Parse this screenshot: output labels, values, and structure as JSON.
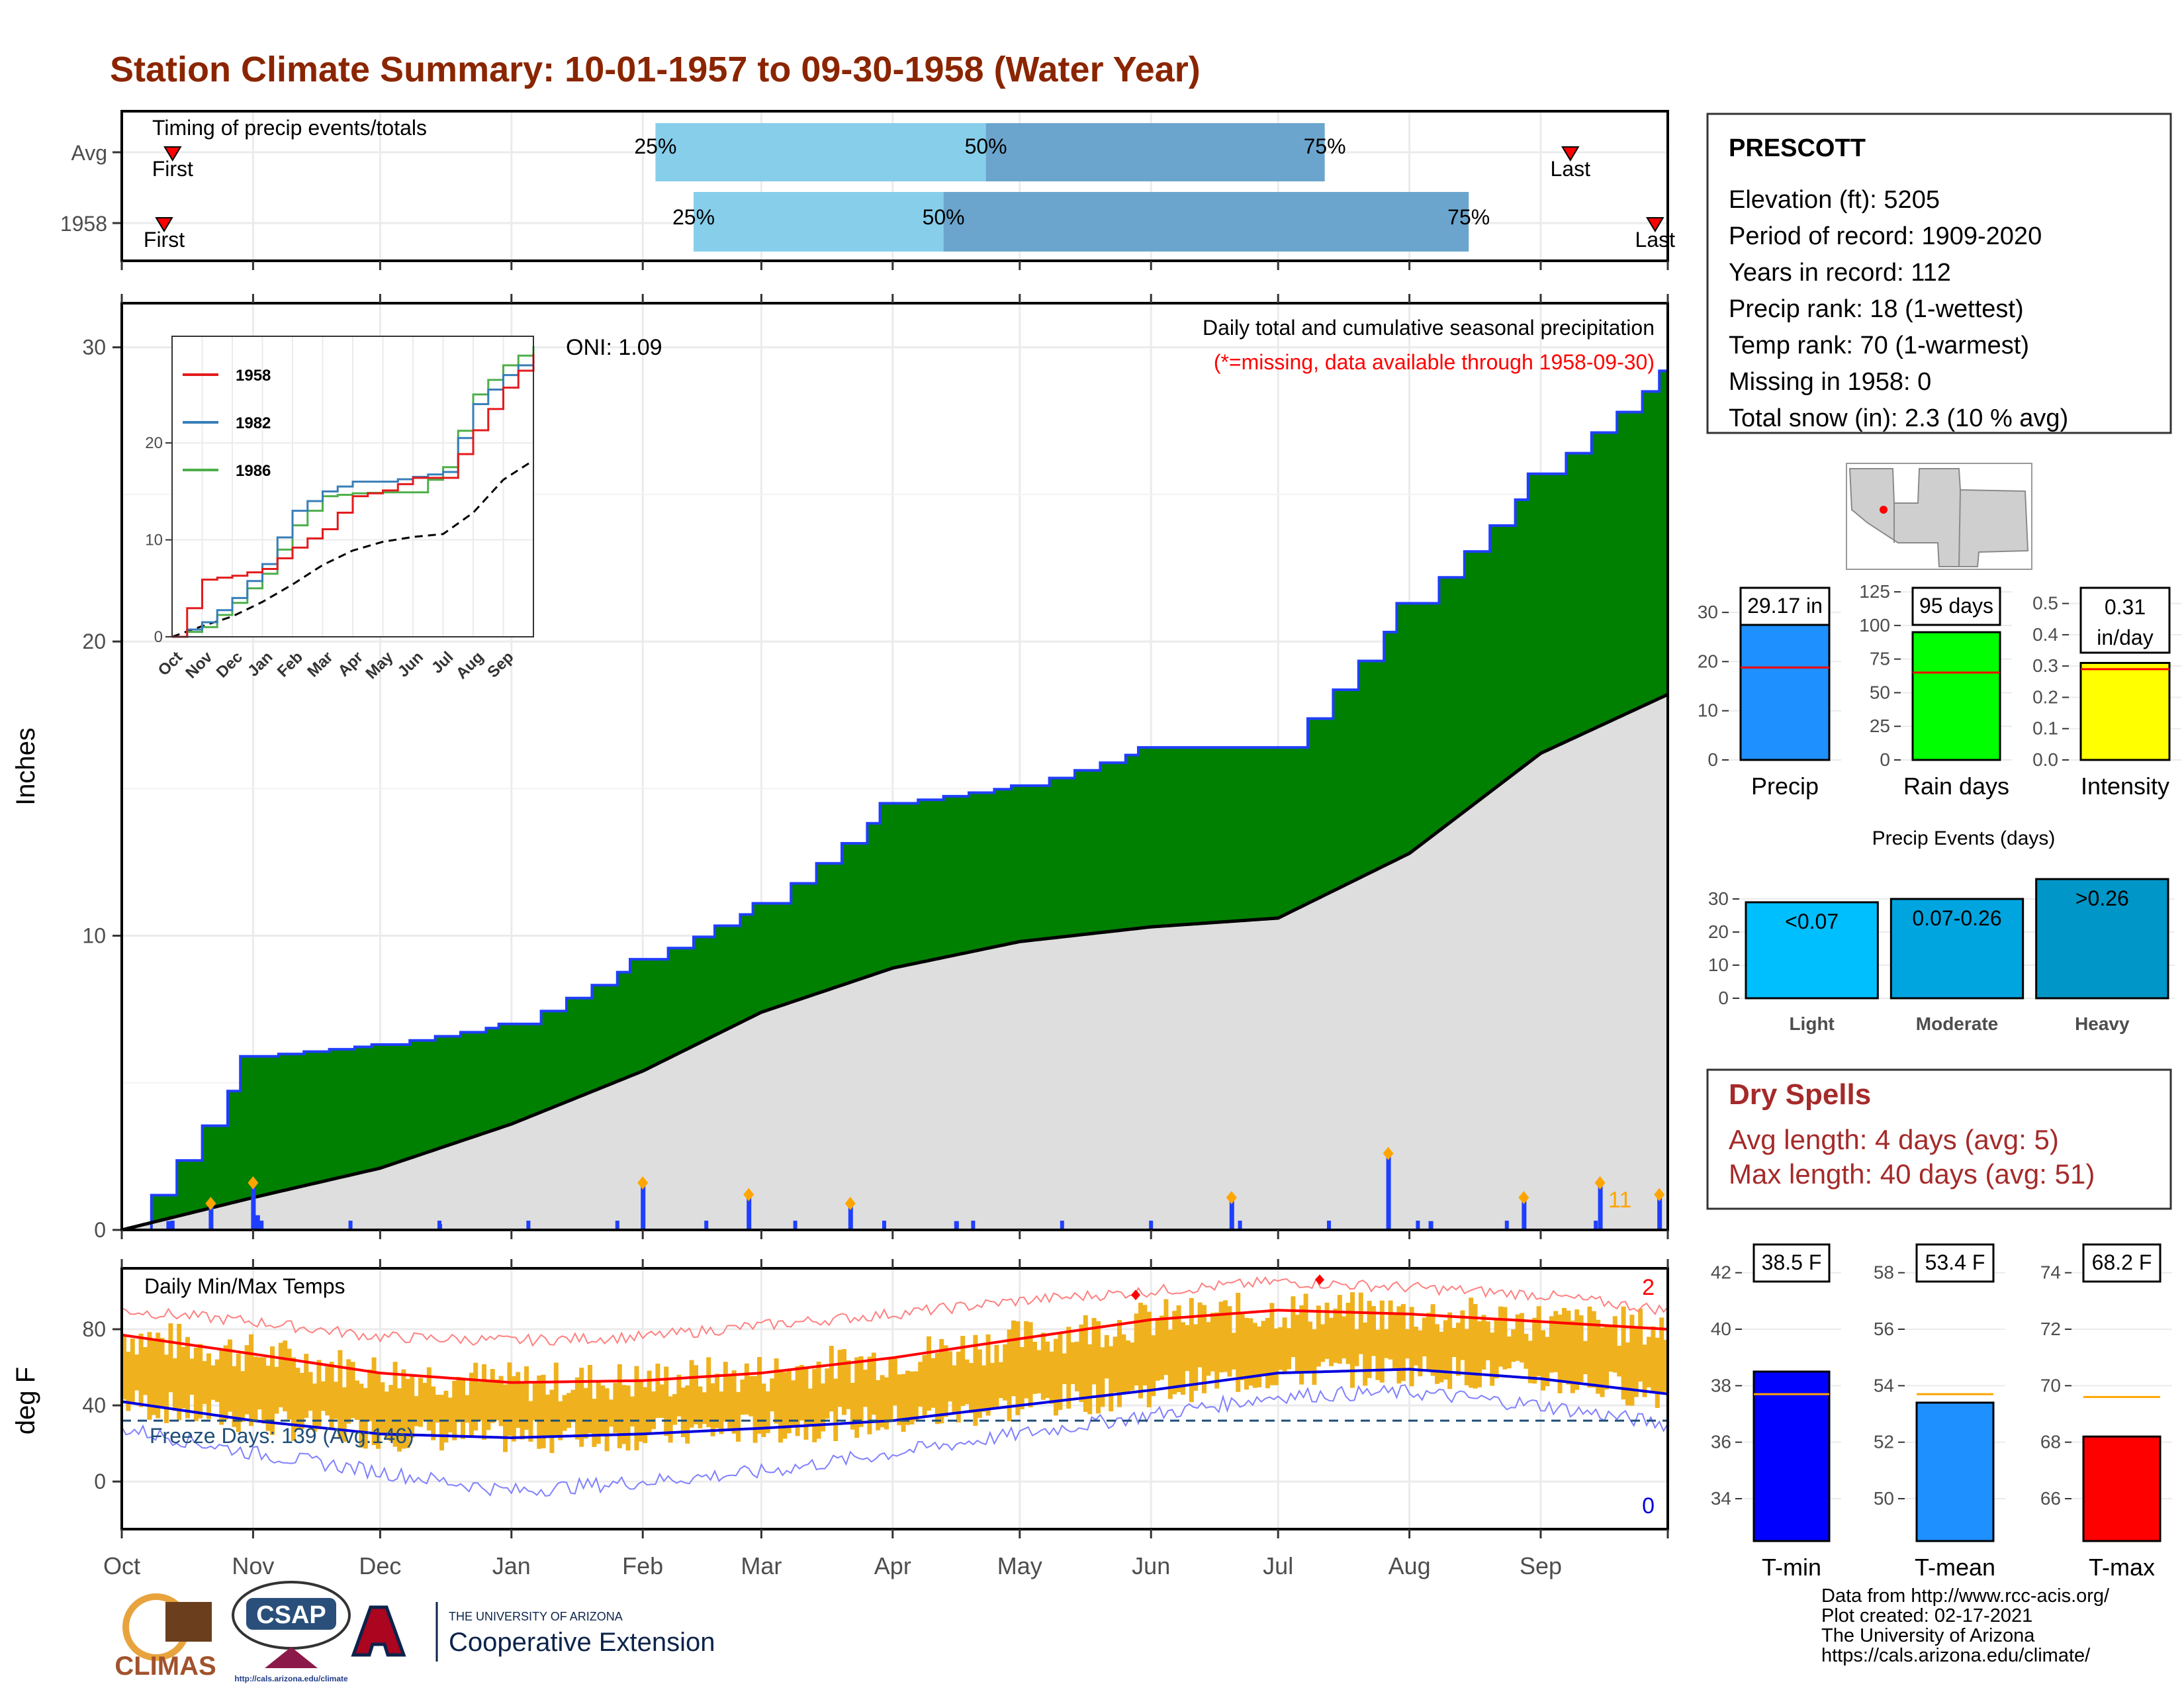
{
  "title": "Station Climate Summary: 10-01-1957 to 09-30-1958 (Water Year)",
  "colors": {
    "title": "#8B2500",
    "precip_bar": "#1f3fff",
    "cum_obs": "#008000",
    "cum_avg": "#dedede",
    "avg_line": "#000000",
    "temp_bar": "#EFB21E",
    "max_line": "#ff0000",
    "min_line": "#0000dd",
    "record_max": "#ff8080",
    "record_min": "#8080ff",
    "red_marker": "#ff0000",
    "orange_marker": "#FFA500"
  },
  "months": [
    "Oct",
    "Nov",
    "Dec",
    "Jan",
    "Feb",
    "Mar",
    "Apr",
    "May",
    "Jun",
    "Jul",
    "Aug",
    "Sep"
  ],
  "timing": {
    "label": "Timing of precip events/totals",
    "rows": [
      {
        "name": "Avg",
        "first_label": "First",
        "last_label": "Last",
        "first_day": 12,
        "last_day": 342,
        "q25": 126,
        "q50": 204,
        "q75": 284
      },
      {
        "name": "1958",
        "first_label": "First",
        "last_label": "Last",
        "first_day": 10,
        "last_day": 362,
        "q25": 135,
        "q50": 194,
        "q75": 318
      }
    ],
    "pct_labels": [
      "25%",
      "50%",
      "75%"
    ]
  },
  "main": {
    "ylabel": "Inches",
    "oni": "ONI: 1.09",
    "subtitle": "Daily total and cumulative seasonal precipitation",
    "note": "(*=missing, data available through 1958-09-30)",
    "yticks": [
      0,
      10,
      20,
      30
    ],
    "big_count": "11"
  },
  "inset": {
    "months": [
      "Oct",
      "Nov",
      "Dec",
      "Jan",
      "Feb",
      "Mar",
      "Apr",
      "May",
      "Jun",
      "Jul",
      "Aug",
      "Sep"
    ],
    "yticks": [
      0,
      10,
      20
    ],
    "legend": [
      {
        "name": "1958",
        "color": "#e41a1c"
      },
      {
        "name": "1982",
        "color": "#377eb8"
      },
      {
        "name": "1986",
        "color": "#4daf4a"
      }
    ]
  },
  "station": {
    "name": "PRESCOTT",
    "lines": [
      "Elevation (ft): 5205",
      "Period of record: 1909-2020",
      "Years in record: 112",
      "Precip rank: 18 (1-wettest)",
      "Temp rank: 70 (1-warmest)",
      "Missing in 1958: 0",
      "Total snow (in): 2.3 (10 % avg)"
    ]
  },
  "temps": {
    "label": "Daily Min/Max Temps",
    "ylabel": "deg F",
    "freeze": "Freeze Days: 139 (Avg:146)",
    "yticks": [
      0,
      40,
      80
    ],
    "count_hot": "2",
    "count_cold": "0"
  },
  "dry": {
    "title": "Dry Spells",
    "avg": "Avg length: 4 days (avg: 5)",
    "max": "Max length: 40 days (avg: 51)"
  },
  "footer": [
    "Data from http://www.rcc-acis.org/",
    "Plot created: 02-17-2021",
    "The University of Arizona",
    "https://cals.arizona.edu/climate/"
  ],
  "logos": {
    "climas": "CLIMAS",
    "csap": "CSAP",
    "csap_url": "http://cals.arizona.edu/climate",
    "ua_top": "THE UNIVERSITY OF ARIZONA",
    "ua_bottom": "Cooperative Extension"
  },
  "chart_data": [
    {
      "type": "area",
      "title": "Daily total and cumulative seasonal precipitation",
      "ylabel": "Inches",
      "ylim": [
        0,
        31
      ],
      "x": [
        "Oct",
        "Nov",
        "Dec",
        "Jan",
        "Feb",
        "Mar",
        "Apr",
        "May",
        "Jun",
        "Jul",
        "Aug",
        "Sep",
        "Sep-end"
      ],
      "series": [
        {
          "name": "1958",
          "values": [
            0,
            5.9,
            6.3,
            7.0,
            9.2,
            11.1,
            14.5,
            15.1,
            16.4,
            16.4,
            21.3,
            25.7,
            29.2
          ]
        },
        {
          "name": "Avg",
          "values": [
            0,
            1.1,
            2.1,
            3.6,
            5.4,
            7.4,
            8.9,
            9.8,
            10.3,
            10.6,
            12.8,
            16.2,
            18.2
          ]
        }
      ],
      "daily_totals": [
        {
          "date": "10-12",
          "value": 0.3
        },
        {
          "date": "10-22",
          "value": 0.9
        },
        {
          "date": "11-01",
          "value": 1.6
        },
        {
          "date": "11-02",
          "value": 0.5
        },
        {
          "date": "12-15",
          "value": 0.2
        },
        {
          "date": "02-01",
          "value": 1.6
        },
        {
          "date": "02-26",
          "value": 1.2
        },
        {
          "date": "03-22",
          "value": 0.9
        },
        {
          "date": "04-16",
          "value": 0.3
        },
        {
          "date": "06-20",
          "value": 1.1
        },
        {
          "date": "07-27",
          "value": 2.6
        },
        {
          "date": "08-06",
          "value": 0.3
        },
        {
          "date": "08-28",
          "value": 1.1
        },
        {
          "date": "09-15",
          "value": 1.6
        },
        {
          "date": "09-29",
          "value": 1.2
        }
      ]
    },
    {
      "type": "line",
      "title": "",
      "ylim": [
        0,
        31
      ],
      "x": [
        "Oct",
        "Nov",
        "Dec",
        "Jan",
        "Feb",
        "Mar",
        "Apr",
        "May",
        "Jun",
        "Jul",
        "Aug",
        "Sep",
        "Sep-end"
      ],
      "series": [
        {
          "name": "1958",
          "values": [
            0,
            5.9,
            6.3,
            7.0,
            9.2,
            11.1,
            14.5,
            15.1,
            16.4,
            16.4,
            21.3,
            25.7,
            29.2
          ]
        },
        {
          "name": "1982",
          "values": [
            0,
            1.5,
            4.0,
            7.5,
            13.0,
            15.0,
            16.0,
            16.0,
            16.5,
            17.0,
            24.0,
            27.0,
            29.0
          ]
        },
        {
          "name": "1986",
          "values": [
            0,
            1.0,
            3.5,
            6.5,
            11.5,
            14.5,
            14.8,
            14.9,
            14.9,
            17.5,
            25.0,
            28.0,
            30.0
          ]
        }
      ],
      "avg_values": [
        0,
        1.1,
        2.1,
        3.6,
        5.4,
        7.4,
        8.9,
        9.8,
        10.3,
        10.6,
        12.8,
        16.2,
        18.2
      ]
    },
    {
      "type": "bar",
      "title": "",
      "categories": [
        "Precip"
      ],
      "values": [
        29.17
      ],
      "value_label": "29.17 in",
      "avg": 18.8,
      "ylim": [
        0,
        35
      ],
      "yticks": [
        0,
        10,
        20,
        30
      ],
      "xlabel": "Precip"
    },
    {
      "type": "bar",
      "title": "",
      "categories": [
        "Rain days"
      ],
      "values": [
        95
      ],
      "value_label": "95 days",
      "avg": 65,
      "ylim": [
        0,
        128
      ],
      "yticks": [
        0,
        25,
        50,
        75,
        100,
        125
      ],
      "xlabel": "Rain days"
    },
    {
      "type": "bar",
      "title": "",
      "categories": [
        "Intensity"
      ],
      "values": [
        0.31
      ],
      "value_label_1": "0.31",
      "value_label_2": "in/day",
      "avg": 0.29,
      "ylim": [
        0,
        0.55
      ],
      "yticks": [
        0.0,
        0.1,
        0.2,
        0.3,
        0.4,
        0.5
      ],
      "xlabel": "Intensity"
    },
    {
      "type": "bar",
      "title": "Precip Events (days)",
      "categories": [
        "Light",
        "Moderate",
        "Heavy"
      ],
      "bar_labels": [
        "<0.07",
        "0.07-0.26",
        ">0.26"
      ],
      "values": [
        29,
        30,
        36
      ],
      "ylim": [
        0,
        38
      ],
      "yticks": [
        0,
        10,
        20,
        30
      ]
    },
    {
      "type": "line",
      "title": "Daily Min/Max Temps",
      "ylabel": "deg F",
      "ylim": [
        -25,
        112
      ],
      "x": [
        "Oct",
        "Nov",
        "Dec",
        "Jan",
        "Feb",
        "Mar",
        "Apr",
        "May",
        "Jun",
        "Jul",
        "Aug",
        "Sep",
        "Sep-end"
      ],
      "series": [
        {
          "name": "Avg max",
          "values": [
            77,
            67,
            57,
            52,
            53,
            57,
            65,
            75,
            85,
            90,
            88,
            84,
            80
          ]
        },
        {
          "name": "Avg min",
          "values": [
            42,
            32,
            25,
            23,
            25,
            28,
            32,
            40,
            48,
            57,
            59,
            54,
            46
          ]
        },
        {
          "name": "Record max",
          "values": [
            90,
            84,
            76,
            74,
            76,
            82,
            88,
            95,
            100,
            105,
            102,
            98,
            90
          ]
        },
        {
          "name": "Record min",
          "values": [
            28,
            15,
            5,
            -5,
            0,
            5,
            15,
            25,
            35,
            45,
            47,
            40,
            30
          ]
        }
      ]
    },
    {
      "type": "bar",
      "title": "",
      "categories": [
        "T-min"
      ],
      "values": [
        38.5
      ],
      "value_label": "38.5 F",
      "avg": 37.7,
      "ylim": [
        32.5,
        43
      ],
      "yticks": [
        34,
        36,
        38,
        40,
        42
      ],
      "xlabel": "T-min"
    },
    {
      "type": "bar",
      "title": "",
      "categories": [
        "T-mean"
      ],
      "values": [
        53.4
      ],
      "value_label": "53.4 F",
      "avg": 53.7,
      "ylim": [
        48.5,
        59
      ],
      "yticks": [
        50,
        52,
        54,
        56,
        58
      ],
      "xlabel": "T-mean"
    },
    {
      "type": "bar",
      "title": "",
      "categories": [
        "T-max"
      ],
      "values": [
        68.2
      ],
      "value_label": "68.2 F",
      "avg": 69.6,
      "ylim": [
        64.5,
        75
      ],
      "yticks": [
        66,
        68,
        70,
        72,
        74
      ],
      "xlabel": "T-max"
    }
  ]
}
